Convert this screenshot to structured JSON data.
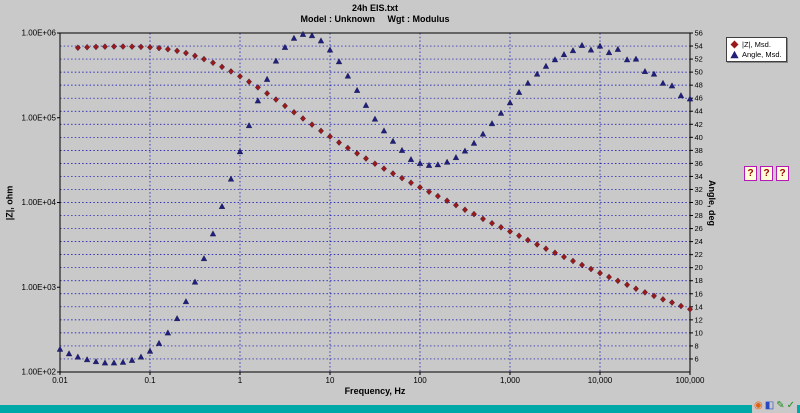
{
  "header": {
    "title": "24h EIS.txt",
    "subtitle": "Model : Unknown     Wgt : Modulus"
  },
  "legend": {
    "items": [
      {
        "marker": "diamond",
        "color": "#9a1a1a",
        "label": "|Z|, Msd."
      },
      {
        "marker": "triangle",
        "color": "#20207c",
        "label": "Angle, Msd."
      }
    ]
  },
  "side_buttons": {
    "labels": [
      "?",
      "?",
      "?"
    ]
  },
  "taskbar": {
    "color": "#00a8a8",
    "tray_icons": [
      {
        "name": "tray-icon-orange",
        "glyph": "◉",
        "color": "#e06418"
      },
      {
        "name": "tray-icon-ime",
        "glyph": "◧",
        "color": "#2847c0"
      },
      {
        "name": "tray-icon-pen",
        "glyph": "✎",
        "color": "#1d8c1d"
      },
      {
        "name": "tray-icon-check",
        "glyph": "✓",
        "color": "#1d8c1d"
      }
    ]
  },
  "colors": {
    "background": "#c9c9c9",
    "grid": "#0000b6",
    "z_marker": "#9a1a1a",
    "angle_marker": "#20207c"
  },
  "chart_data": {
    "type": "scatter",
    "title": "24h EIS.txt",
    "subtitle": "Model : Unknown     Wgt : Modulus",
    "x_axis": {
      "label": "Frequency, Hz",
      "scale": "log",
      "min": 0.01,
      "max": 100000,
      "ticks": [
        {
          "v": 0.01,
          "t": "0.01"
        },
        {
          "v": 0.1,
          "t": "0.1"
        },
        {
          "v": 1,
          "t": "1"
        },
        {
          "v": 10,
          "t": "10"
        },
        {
          "v": 100,
          "t": "100"
        },
        {
          "v": 1000,
          "t": "1,000"
        },
        {
          "v": 10000,
          "t": "10,000"
        },
        {
          "v": 100000,
          "t": "100,000"
        }
      ]
    },
    "left_axis": {
      "label": "|Z|, ohm",
      "scale": "log",
      "min": 100,
      "max": 1000000,
      "ticks": [
        {
          "v": 100,
          "t": "1.00E+02"
        },
        {
          "v": 1000,
          "t": "1.00E+03"
        },
        {
          "v": 10000,
          "t": "1.00E+04"
        },
        {
          "v": 100000,
          "t": "1.00E+05"
        },
        {
          "v": 1000000,
          "t": "1.00E+06"
        }
      ]
    },
    "right_axis": {
      "label": "Angle, deg",
      "scale": "linear",
      "min": 4,
      "max": 56,
      "tick_values": [
        56,
        54,
        52,
        50,
        48,
        46,
        44,
        42,
        40,
        38,
        36,
        34,
        32,
        30,
        28,
        26,
        24,
        22,
        20,
        18,
        16,
        14,
        12,
        10,
        8,
        6
      ]
    },
    "grid": {
      "horizontal_from_right_axis": true,
      "vertical_at_decades": [
        0.1,
        1,
        10,
        100,
        1000,
        10000
      ]
    },
    "series": [
      {
        "name": "|Z|, Msd.",
        "axis": "left",
        "marker": "diamond",
        "color": "#9a1a1a",
        "x": [
          0.0158,
          0.02,
          0.0251,
          0.0316,
          0.0398,
          0.0501,
          0.0631,
          0.0794,
          0.1,
          0.126,
          0.158,
          0.2,
          0.251,
          0.316,
          0.398,
          0.501,
          0.631,
          0.794,
          1,
          1.26,
          1.58,
          2,
          2.51,
          3.16,
          3.98,
          5.01,
          6.31,
          7.94,
          10,
          12.6,
          15.8,
          20,
          25.1,
          31.6,
          39.8,
          50.1,
          63.1,
          79.4,
          100,
          126,
          158,
          200,
          251,
          316,
          398,
          501,
          631,
          794,
          1000,
          1260,
          1580,
          2000,
          2510,
          3160,
          3980,
          5010,
          6310,
          7940,
          10000,
          12600,
          15800,
          20000,
          25100,
          31600,
          39800,
          50100,
          63100,
          79400,
          100000
        ],
        "y": [
          670000.0,
          680000.0,
          685000.0,
          690000.0,
          692000.0,
          692000.0,
          690000.0,
          686000.0,
          678000.0,
          664000.0,
          644000.0,
          616000.0,
          580000.0,
          538000.0,
          492000.0,
          445000.0,
          398000.0,
          352000.0,
          308000.0,
          266000.0,
          228000.0,
          194000.0,
          164000.0,
          138000.0,
          116000.0,
          98000.0,
          83000.0,
          70000.0,
          60000.0,
          51000.0,
          44000.0,
          38000.0,
          33000.0,
          28700.0,
          25100.0,
          22000.0,
          19400.0,
          17100.0,
          15100.0,
          13400.0,
          11900.0,
          10500.0,
          9300.0,
          8200.0,
          7300.0,
          6400.0,
          5700.0,
          5100.0,
          4550.0,
          4050.0,
          3600.0,
          3200.0,
          2850.0,
          2550.0,
          2280.0,
          2040.0,
          1830.0,
          1640.0,
          1470.0,
          1320.0,
          1190.0,
          1070.0,
          960.0,
          870.0,
          790.0,
          720.0,
          660.0,
          600.0,
          550.0
        ]
      },
      {
        "name": "Angle, Msd.",
        "axis": "right",
        "marker": "triangle",
        "color": "#20207c",
        "x": [
          0.01,
          0.0126,
          0.0158,
          0.02,
          0.0251,
          0.0316,
          0.0398,
          0.0501,
          0.0631,
          0.0794,
          0.1,
          0.126,
          0.158,
          0.2,
          0.251,
          0.316,
          0.398,
          0.501,
          0.631,
          0.794,
          1,
          1.26,
          1.58,
          2,
          2.51,
          3.16,
          3.98,
          5.01,
          6.31,
          7.94,
          10,
          12.6,
          15.8,
          20,
          25.1,
          31.6,
          39.8,
          50.1,
          63.1,
          79.4,
          100,
          126,
          158,
          200,
          251,
          316,
          398,
          501,
          631,
          794,
          1000,
          1260,
          1580,
          2000,
          2510,
          3160,
          3980,
          5010,
          6310,
          7940,
          10000,
          12600,
          15800,
          20000,
          25100,
          31600,
          39800,
          50100,
          63100,
          79400,
          100000
        ],
        "y": [
          7.5,
          6.8,
          6.3,
          5.9,
          5.6,
          5.4,
          5.4,
          5.5,
          5.8,
          6.3,
          7.2,
          8.4,
          10.0,
          12.2,
          14.8,
          17.8,
          21.4,
          25.2,
          29.4,
          33.6,
          37.8,
          41.8,
          45.6,
          48.9,
          51.7,
          53.8,
          55.2,
          55.8,
          55.6,
          54.8,
          53.4,
          51.6,
          49.4,
          47.2,
          44.9,
          42.8,
          41.0,
          39.4,
          38.0,
          36.6,
          36.0,
          35.7,
          35.8,
          36.2,
          36.9,
          37.9,
          39.1,
          40.5,
          42.1,
          43.7,
          45.3,
          46.9,
          48.3,
          49.7,
          50.9,
          51.9,
          52.7,
          53.3,
          54.1,
          53.4,
          54.0,
          53.0,
          53.5,
          51.9,
          52.0,
          50.1,
          49.7,
          48.3,
          47.9,
          46.4,
          45.9
        ]
      }
    ]
  }
}
